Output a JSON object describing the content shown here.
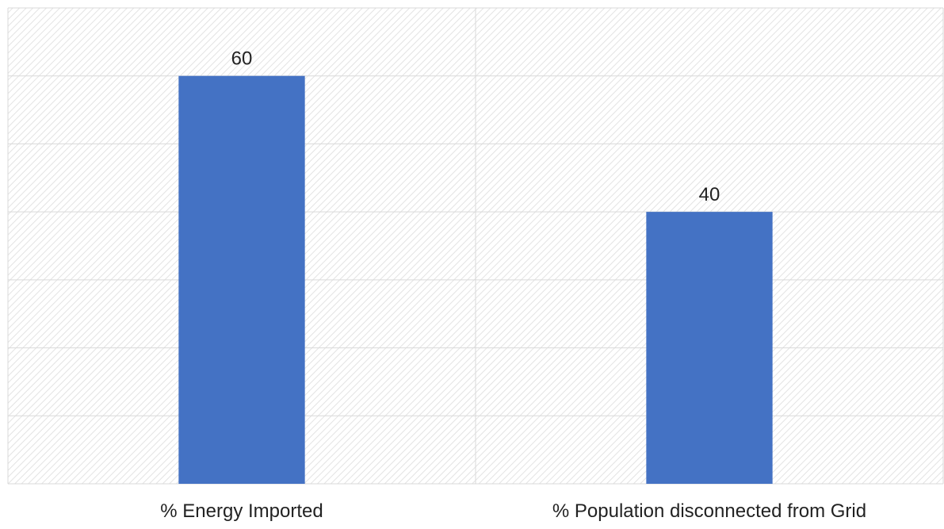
{
  "chart_data": {
    "type": "bar",
    "categories": [
      "% Energy Imported",
      "% Population disconnected from Grid"
    ],
    "series": [
      {
        "values": [
          60,
          40
        ]
      }
    ],
    "data_labels": [
      "60",
      "40"
    ],
    "ylim": [
      0,
      70
    ],
    "grid": true,
    "bar_color": "#4472C4",
    "grid_color": "#D9D9D9",
    "hatch_color": "#E3E3E3",
    "background": "#FFFFFF"
  }
}
